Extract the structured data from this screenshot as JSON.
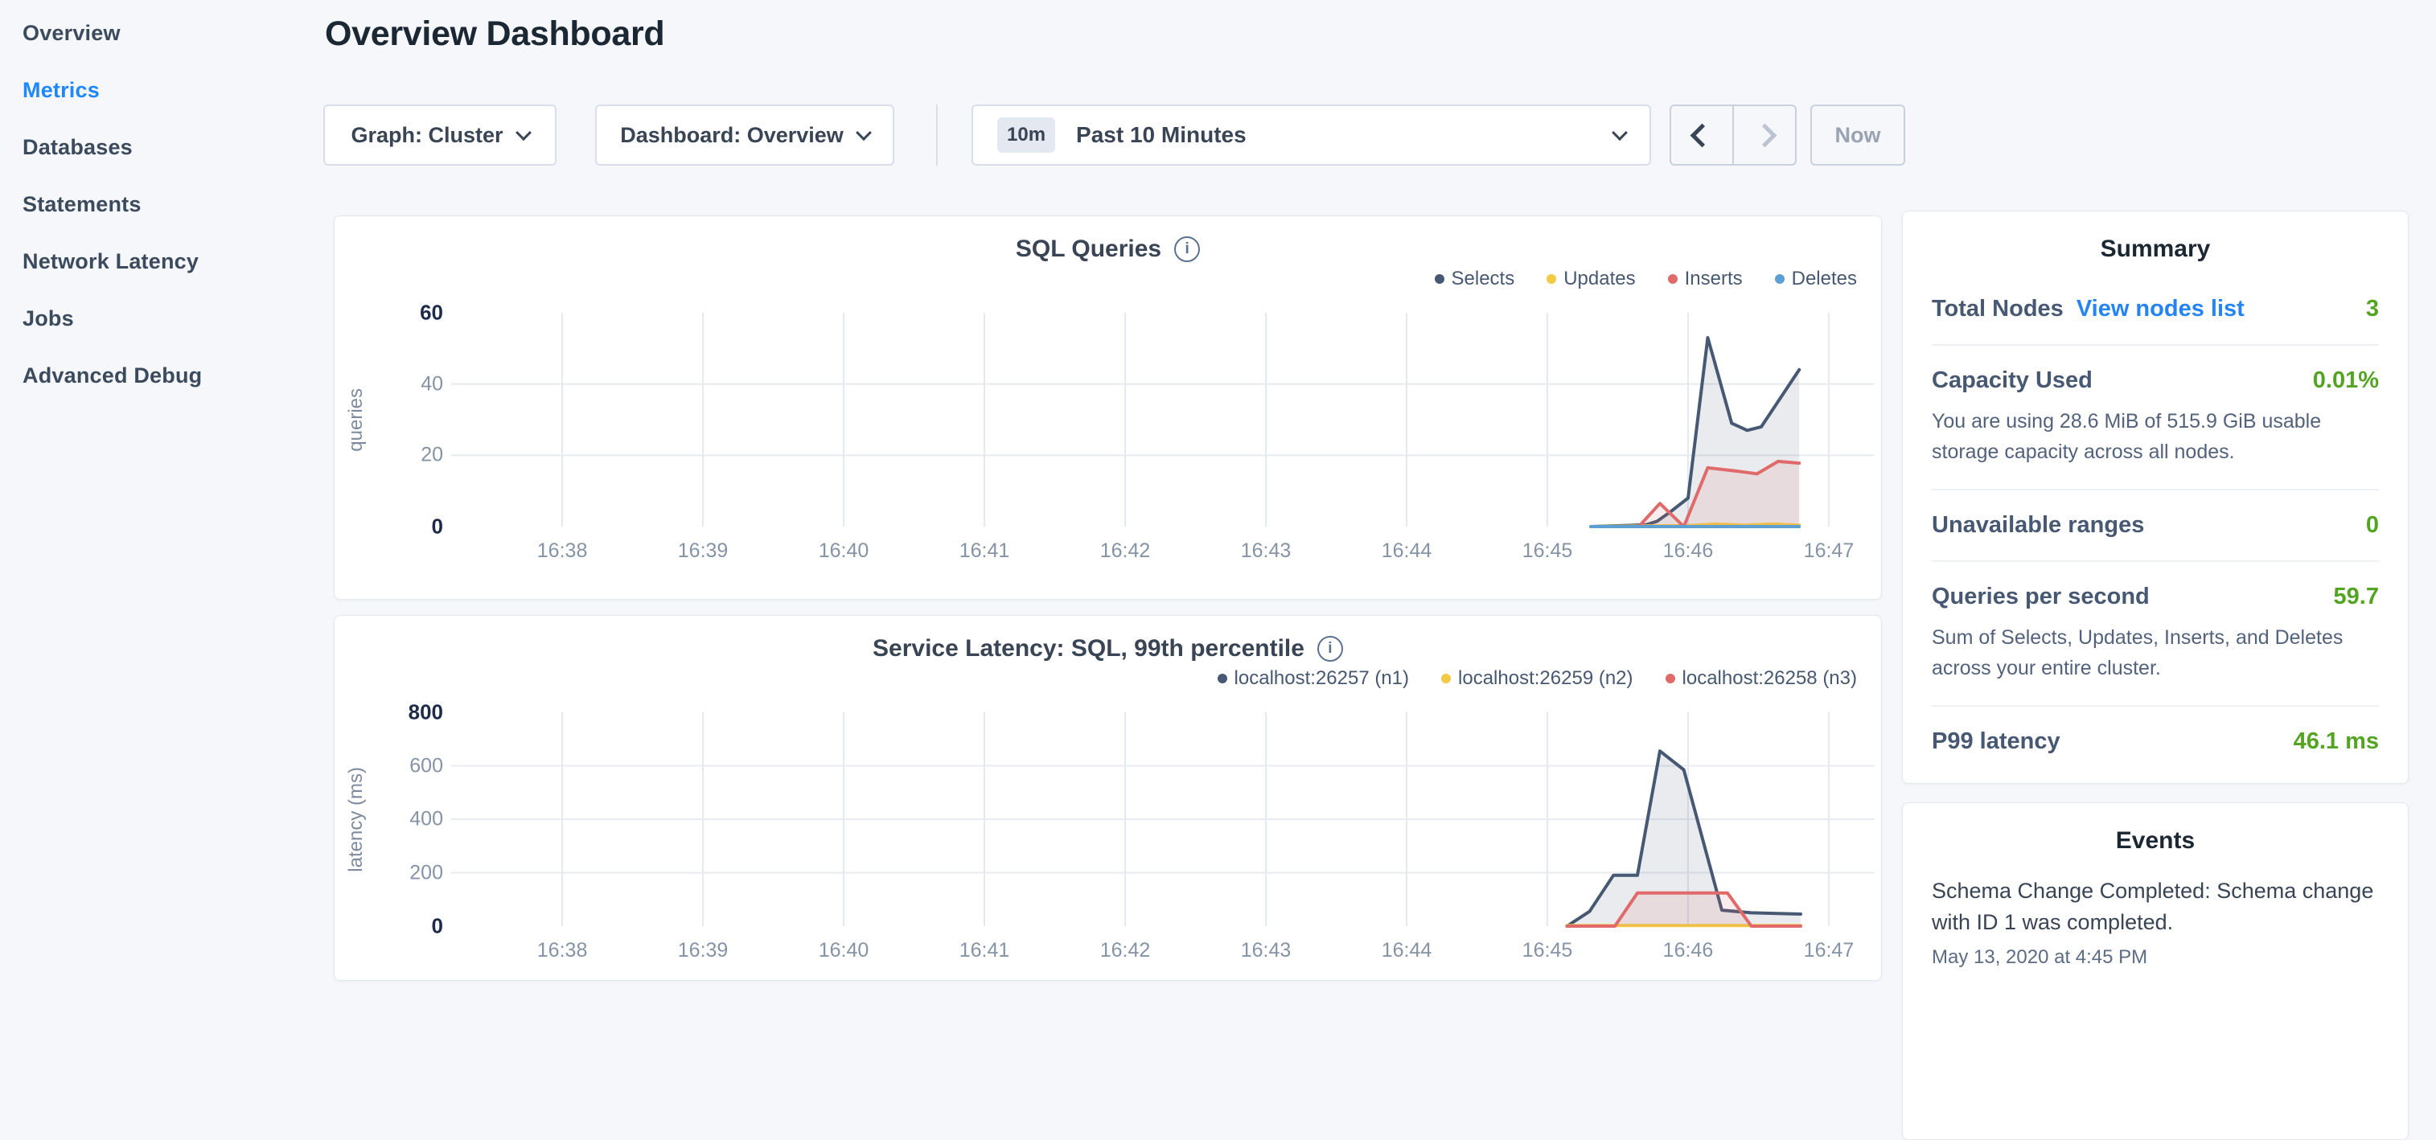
{
  "colors": {
    "accent_blue": "#1f87ff",
    "link_blue": "#2484f5",
    "value_green": "#54a423",
    "series_navy": "#475872",
    "series_yellow": "#f2ca46",
    "series_red": "#e06a6a",
    "series_blue": "#5b9fd4",
    "disabled_grey": "#9aa3b2"
  },
  "sidebar": {
    "items": [
      {
        "label": "Overview",
        "active": false
      },
      {
        "label": "Metrics",
        "active": true
      },
      {
        "label": "Databases",
        "active": false
      },
      {
        "label": "Statements",
        "active": false
      },
      {
        "label": "Network Latency",
        "active": false
      },
      {
        "label": "Jobs",
        "active": false
      },
      {
        "label": "Advanced Debug",
        "active": false
      }
    ]
  },
  "header": {
    "title": "Overview Dashboard"
  },
  "controls": {
    "graph_dropdown": "Graph: Cluster",
    "dashboard_dropdown": "Dashboard: Overview",
    "time_badge": "10m",
    "time_label": "Past 10 Minutes",
    "now_label": "Now"
  },
  "chart_data": [
    {
      "type": "area",
      "title": "SQL Queries",
      "ylabel": "queries",
      "ylim": [
        0,
        60
      ],
      "yticks": [
        0,
        20,
        40,
        60
      ],
      "x_unit": "minutes after 16:30",
      "x_domain": [
        7.211,
        17.326
      ],
      "x_ticks": [
        {
          "t": 8,
          "label": "16:38"
        },
        {
          "t": 9,
          "label": "16:39"
        },
        {
          "t": 10,
          "label": "16:40"
        },
        {
          "t": 11,
          "label": "16:41"
        },
        {
          "t": 12,
          "label": "16:42"
        },
        {
          "t": 13,
          "label": "16:43"
        },
        {
          "t": 14,
          "label": "16:44"
        },
        {
          "t": 15,
          "label": "16:45"
        },
        {
          "t": 16,
          "label": "16:46"
        },
        {
          "t": 17,
          "label": "16:47"
        }
      ],
      "grid": true,
      "legend_position": "top-right",
      "series": [
        {
          "name": "Selects",
          "color": "#475872",
          "fill_opacity": 0.12,
          "points": [
            [
              15.31,
              0
            ],
            [
              15.7,
              0.5
            ],
            [
              15.78,
              1.5
            ],
            [
              15.87,
              4
            ],
            [
              16.0,
              8
            ],
            [
              16.14,
              53
            ],
            [
              16.31,
              29
            ],
            [
              16.42,
              27
            ],
            [
              16.52,
              28
            ],
            [
              16.79,
              44
            ]
          ]
        },
        {
          "name": "Updates",
          "color": "#f2ca46",
          "fill_opacity": 0.12,
          "points": [
            [
              15.31,
              0
            ],
            [
              16.0,
              0.3
            ],
            [
              16.2,
              0.7
            ],
            [
              16.4,
              0.4
            ],
            [
              16.6,
              0.7
            ],
            [
              16.79,
              0.4
            ]
          ]
        },
        {
          "name": "Inserts",
          "color": "#e06a6a",
          "fill_opacity": 0.12,
          "points": [
            [
              15.31,
              0
            ],
            [
              15.65,
              0
            ],
            [
              15.8,
              6.5
            ],
            [
              15.97,
              0
            ],
            [
              16.14,
              16.5
            ],
            [
              16.36,
              15.5
            ],
            [
              16.49,
              14.8
            ],
            [
              16.64,
              18.3
            ],
            [
              16.79,
              17.8
            ]
          ]
        },
        {
          "name": "Deletes",
          "color": "#5b9fd4",
          "fill_opacity": 0.12,
          "points": [
            [
              15.31,
              0
            ],
            [
              16.79,
              0
            ]
          ]
        }
      ]
    },
    {
      "type": "area",
      "title": "Service Latency: SQL, 99th percentile",
      "ylabel": "latency (ms)",
      "ylim": [
        0,
        800
      ],
      "yticks": [
        0,
        200,
        400,
        600,
        800
      ],
      "x_unit": "minutes after 16:30",
      "x_domain": [
        7.211,
        17.326
      ],
      "x_ticks": [
        {
          "t": 8,
          "label": "16:38"
        },
        {
          "t": 9,
          "label": "16:39"
        },
        {
          "t": 10,
          "label": "16:40"
        },
        {
          "t": 11,
          "label": "16:41"
        },
        {
          "t": 12,
          "label": "16:42"
        },
        {
          "t": 13,
          "label": "16:43"
        },
        {
          "t": 14,
          "label": "16:44"
        },
        {
          "t": 15,
          "label": "16:45"
        },
        {
          "t": 16,
          "label": "16:46"
        },
        {
          "t": 17,
          "label": "16:47"
        }
      ],
      "grid": true,
      "legend_position": "top-right",
      "series": [
        {
          "name": "localhost:26257 (n1)",
          "color": "#475872",
          "fill_opacity": 0.12,
          "points": [
            [
              15.14,
              0
            ],
            [
              15.3,
              55
            ],
            [
              15.47,
              190
            ],
            [
              15.64,
              190
            ],
            [
              15.8,
              655
            ],
            [
              15.97,
              585
            ],
            [
              16.24,
              60
            ],
            [
              16.45,
              50
            ],
            [
              16.8,
              45
            ]
          ]
        },
        {
          "name": "localhost:26259 (n2)",
          "color": "#f2ca46",
          "fill_opacity": 0.12,
          "points": [
            [
              15.14,
              2
            ],
            [
              16.8,
              2
            ]
          ]
        },
        {
          "name": "localhost:26258 (n3)",
          "color": "#e06a6a",
          "fill_opacity": 0.12,
          "points": [
            [
              15.14,
              0
            ],
            [
              15.48,
              0
            ],
            [
              15.64,
              124
            ],
            [
              16.28,
              124
            ],
            [
              16.45,
              0
            ],
            [
              16.8,
              0
            ]
          ]
        }
      ]
    }
  ],
  "summary": {
    "title": "Summary",
    "rows": [
      {
        "label": "Total Nodes",
        "link": "View nodes list",
        "value": "3",
        "description": ""
      },
      {
        "label": "Capacity Used",
        "link": "",
        "value": "0.01%",
        "description": "You are using 28.6 MiB of 515.9 GiB usable storage capacity across all nodes."
      },
      {
        "label": "Unavailable ranges",
        "link": "",
        "value": "0",
        "description": ""
      },
      {
        "label": "Queries per second",
        "link": "",
        "value": "59.7",
        "description": "Sum of Selects, Updates, Inserts, and Deletes across your entire cluster."
      },
      {
        "label": "P99 latency",
        "link": "",
        "value": "46.1 ms",
        "description": ""
      }
    ]
  },
  "events": {
    "title": "Events",
    "items": [
      {
        "text": "Schema Change Completed: Schema change with ID 1 was completed.",
        "timestamp": "May 13, 2020 at 4:45 PM"
      }
    ]
  }
}
